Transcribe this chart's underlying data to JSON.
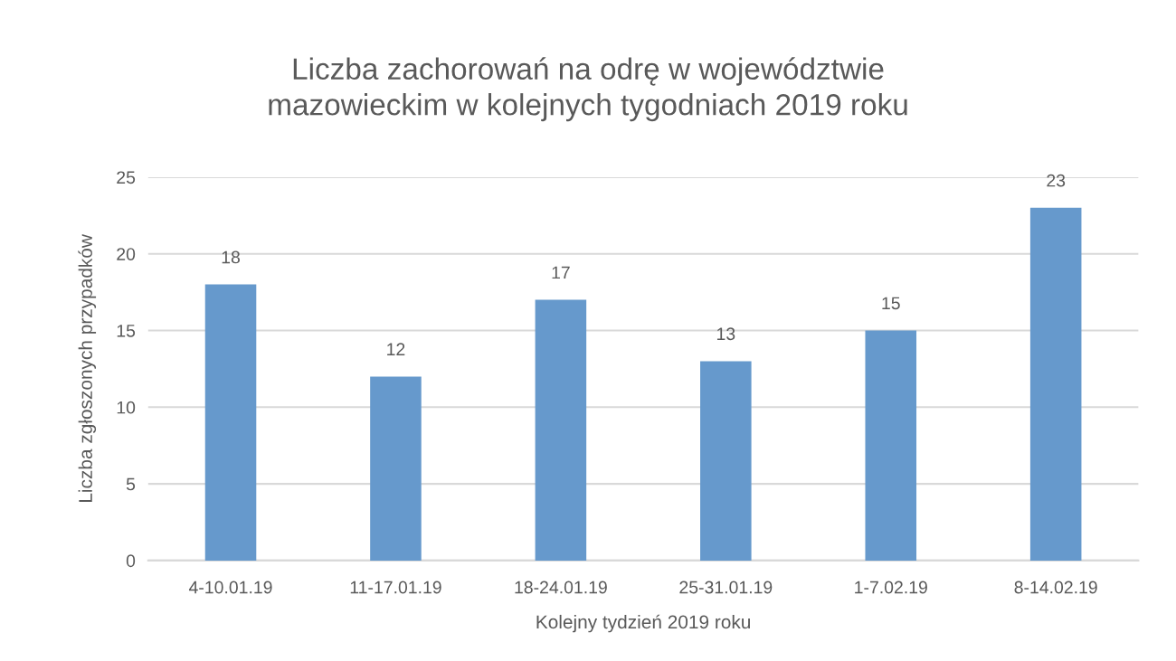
{
  "chart_data": {
    "type": "bar",
    "title": "Liczba zachorowań na odrę w województwie\nmazowieckim w kolejnych tygodniach 2019 roku",
    "xlabel": "Kolejny tydzień 2019 roku",
    "ylabel": "Liczba zgłoszonych przypadków",
    "categories": [
      "4-10.01.19",
      "11-17.01.19",
      "18-24.01.19",
      "25-31.01.19",
      "1-7.02.19",
      "8-14.02.19"
    ],
    "values": [
      18,
      12,
      17,
      13,
      15,
      23
    ],
    "color": "#6699cc",
    "ylim": [
      0,
      25
    ],
    "yticks": [
      0,
      5,
      10,
      15,
      20,
      25
    ],
    "grid": "y",
    "data_labels": true,
    "legend": false
  }
}
